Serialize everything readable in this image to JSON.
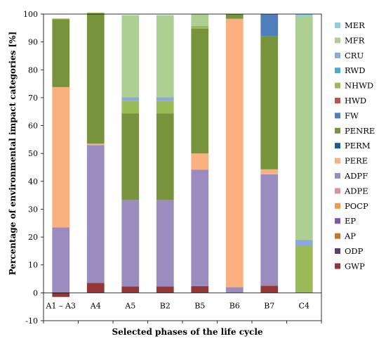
{
  "chart_data": {
    "type": "bar",
    "stacked": true,
    "title": "",
    "xlabel": "Selected phases of the life cycle",
    "ylabel": "Percentage of environmental impact categories [%]",
    "ylim": [
      -10,
      100
    ],
    "yticks": [
      -10,
      0,
      10,
      20,
      30,
      40,
      50,
      60,
      70,
      80,
      90,
      100
    ],
    "grid": false,
    "legend": "right",
    "categories": [
      "A1 – A3",
      "A4",
      "A5",
      "B2",
      "B5",
      "B6",
      "B7",
      "C4"
    ],
    "series": [
      {
        "name": "GWP",
        "color": "#943634",
        "values": [
          -1.5,
          3.5,
          2.3,
          2.3,
          2.4,
          0.0,
          2.5,
          0.0
        ]
      },
      {
        "name": "ODP",
        "color": "#5e3c6e",
        "values": [
          0,
          0,
          0,
          0,
          0,
          0,
          0,
          0
        ]
      },
      {
        "name": "AP",
        "color": "#c0772f",
        "values": [
          0,
          0,
          0,
          0,
          0,
          0,
          0,
          0
        ]
      },
      {
        "name": "EP",
        "color": "#7b5aa6",
        "values": [
          0,
          0,
          0,
          0,
          0,
          0,
          0,
          0
        ]
      },
      {
        "name": "POCP",
        "color": "#f79646",
        "values": [
          0,
          0,
          0,
          0,
          0,
          0,
          0,
          0
        ]
      },
      {
        "name": "ADPE",
        "color": "#d99694",
        "values": [
          0,
          0,
          0,
          0,
          0,
          0,
          0,
          0
        ]
      },
      {
        "name": "ADPF",
        "color": "#9b8cbf",
        "values": [
          23.5,
          49.5,
          31.0,
          31.0,
          41.8,
          2.0,
          40.0,
          0.0
        ]
      },
      {
        "name": "PERE",
        "color": "#fab07f",
        "values": [
          50.3,
          0.5,
          0.0,
          0.0,
          5.8,
          96.3,
          1.8,
          0.0
        ]
      },
      {
        "name": "PERM",
        "color": "#1f5a96",
        "values": [
          0,
          0,
          0,
          0,
          0,
          0,
          0,
          0
        ]
      },
      {
        "name": "PENRE",
        "color": "#77933c",
        "values": [
          24.3,
          46.5,
          31.0,
          31.0,
          44.8,
          1.7,
          47.7,
          0.0
        ]
      },
      {
        "name": "FW",
        "color": "#4f7fbd",
        "values": [
          0.0,
          0.0,
          0.0,
          0.0,
          0.0,
          0.0,
          8.0,
          0.0
        ]
      },
      {
        "name": "HWD",
        "color": "#c0504d",
        "values": [
          0,
          0,
          0,
          0,
          0,
          0,
          0,
          0
        ]
      },
      {
        "name": "NHWD",
        "color": "#9bbb59",
        "values": [
          0.3,
          0.5,
          4.6,
          4.6,
          1.0,
          0.0,
          0.0,
          17.0
        ]
      },
      {
        "name": "RWD",
        "color": "#4bacc6",
        "values": [
          0,
          0,
          0,
          0,
          0,
          0,
          0,
          0
        ]
      },
      {
        "name": "CRU",
        "color": "#8da9db",
        "values": [
          0.0,
          0.0,
          1.2,
          1.2,
          0.0,
          0.0,
          0.0,
          2.0
        ]
      },
      {
        "name": "MFR",
        "color": "#add092",
        "values": [
          0.0,
          0.0,
          29.5,
          29.5,
          4.2,
          0.0,
          0.0,
          80.0
        ]
      },
      {
        "name": "MER",
        "color": "#92cddc",
        "values": [
          0.0,
          0.0,
          0.0,
          0.0,
          0.0,
          0.0,
          0.0,
          1.0
        ]
      }
    ]
  }
}
